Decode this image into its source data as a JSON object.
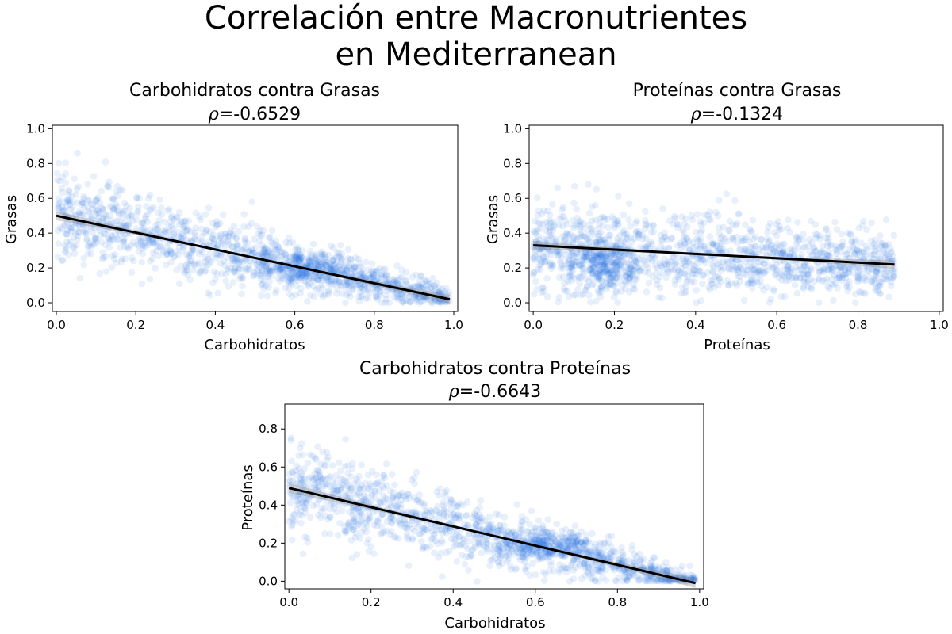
{
  "figure": {
    "suptitle_line1": "Correlación entre Macronutrientes",
    "suptitle_line2": "en Mediterranean",
    "point_color": "#1f6fe5",
    "line_color": "#000000"
  },
  "chart_data": [
    {
      "type": "scatter",
      "title": "Carbohidratos contra Grasas",
      "rho_label": "=-0.6529",
      "xlabel": "Carbohidratos",
      "ylabel": "Grasas",
      "xlim": [
        -0.01,
        1.01
      ],
      "ylim": [
        -0.05,
        1.02
      ],
      "xticks": [
        0.0,
        0.2,
        0.4,
        0.6,
        0.8,
        1.0
      ],
      "xtick_labels": [
        "0.0",
        "0.2",
        "0.4",
        "0.6",
        "0.8",
        "1.0"
      ],
      "yticks": [
        0.0,
        0.2,
        0.4,
        0.6,
        0.8,
        1.0
      ],
      "ytick_labels": [
        "0.0",
        "0.2",
        "0.4",
        "0.6",
        "0.8",
        "1.0"
      ],
      "regression": {
        "x": [
          0.0,
          0.99
        ],
        "y": [
          0.5,
          0.02
        ]
      },
      "sample": {
        "x_range": [
          0.0,
          0.99
        ],
        "noise_at_x0": 0.18,
        "noise_at_x1": 0.05,
        "cluster": {
          "x": 0.62,
          "y": 0.2,
          "sx": 0.06,
          "sy": 0.05,
          "n": 220
        },
        "n": 1300
      },
      "grid": false,
      "legend": "none"
    },
    {
      "type": "scatter",
      "title": "Proteínas contra Grasas",
      "rho_label": "=-0.1324",
      "xlabel": "Proteínas",
      "ylabel": "Grasas",
      "xlim": [
        -0.01,
        1.01
      ],
      "ylim": [
        -0.05,
        1.02
      ],
      "xticks": [
        0.0,
        0.2,
        0.4,
        0.6,
        0.8,
        1.0
      ],
      "xtick_labels": [
        "0.0",
        "0.2",
        "0.4",
        "0.6",
        "0.8",
        "1.0"
      ],
      "yticks": [
        0.0,
        0.2,
        0.4,
        0.6,
        0.8,
        1.0
      ],
      "ytick_labels": [
        "0.0",
        "0.2",
        "0.4",
        "0.6",
        "0.8",
        "1.0"
      ],
      "regression": {
        "x": [
          0.0,
          0.89
        ],
        "y": [
          0.33,
          0.22
        ]
      },
      "sample": {
        "x_range": [
          0.0,
          0.89
        ],
        "noise_at_x0": 0.17,
        "noise_at_x1": 0.12,
        "cluster": {
          "x": 0.18,
          "y": 0.2,
          "sx": 0.05,
          "sy": 0.08,
          "n": 260
        },
        "n": 1300
      },
      "grid": false,
      "legend": "none"
    },
    {
      "type": "scatter",
      "title": "Carbohidratos contra Proteínas",
      "rho_label": "=-0.6643",
      "xlabel": "Carbohidratos",
      "ylabel": "Proteínas",
      "xlim": [
        -0.01,
        1.01
      ],
      "ylim": [
        -0.04,
        0.93
      ],
      "xticks": [
        0.0,
        0.2,
        0.4,
        0.6,
        0.8,
        1.0
      ],
      "xtick_labels": [
        "0.0",
        "0.2",
        "0.4",
        "0.6",
        "0.8",
        "1.0"
      ],
      "yticks": [
        0.0,
        0.2,
        0.4,
        0.6,
        0.8
      ],
      "ytick_labels": [
        "0.0",
        "0.2",
        "0.4",
        "0.6",
        "0.8"
      ],
      "regression": {
        "x": [
          0.0,
          0.99
        ],
        "y": [
          0.49,
          -0.01
        ]
      },
      "sample": {
        "x_range": [
          0.0,
          0.99
        ],
        "noise_at_x0": 0.17,
        "noise_at_x1": 0.04,
        "cluster": {
          "x": 0.63,
          "y": 0.19,
          "sx": 0.06,
          "sy": 0.04,
          "n": 220
        },
        "n": 1300
      },
      "grid": false,
      "legend": "none"
    }
  ]
}
